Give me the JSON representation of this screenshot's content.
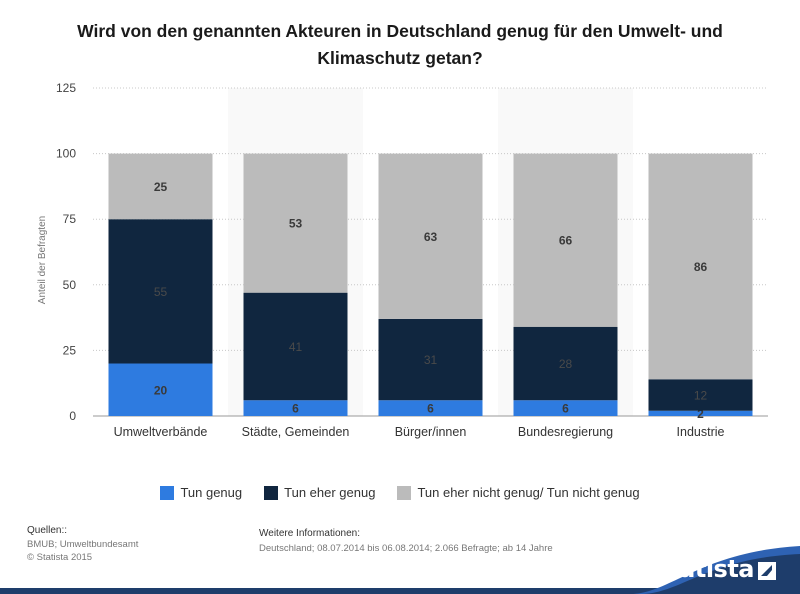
{
  "chart_data": {
    "type": "bar",
    "stacked": true,
    "title": "Wird von den genannten Akteuren in Deutschland genug für den Umwelt- und Klimaschutz getan?",
    "ylabel": "Anteil der Befragten",
    "xlabel": "",
    "ylim": [
      0,
      125
    ],
    "yticks": [
      0,
      25,
      50,
      75,
      100,
      125
    ],
    "categories": [
      "Umweltverbände",
      "Städte, Gemeinden",
      "Bürger/innen",
      "Bundesregierung",
      "Industrie"
    ],
    "series": [
      {
        "name": "Tun genug",
        "values": [
          20,
          6,
          6,
          6,
          2
        ],
        "color": "#2e7be0"
      },
      {
        "name": "Tun eher genug",
        "values": [
          55,
          41,
          31,
          28,
          12
        ],
        "color": "#10263f"
      },
      {
        "name": "Tun eher nicht genug/ Tun nicht genug",
        "values": [
          25,
          53,
          63,
          66,
          86
        ],
        "color": "#bbbbbb"
      }
    ],
    "legend_position": "bottom"
  },
  "footer": {
    "sources_label": "Quellen::",
    "sources_lines": [
      "BMUB; Umweltbundesamt",
      "© Statista 2015"
    ],
    "info_label": "Weitere Informationen:",
    "info_text": "Deutschland; 08.07.2014 bis 06.08.2014; 2.066 Befragte; ab 14 Jahre"
  },
  "brand": "statista"
}
